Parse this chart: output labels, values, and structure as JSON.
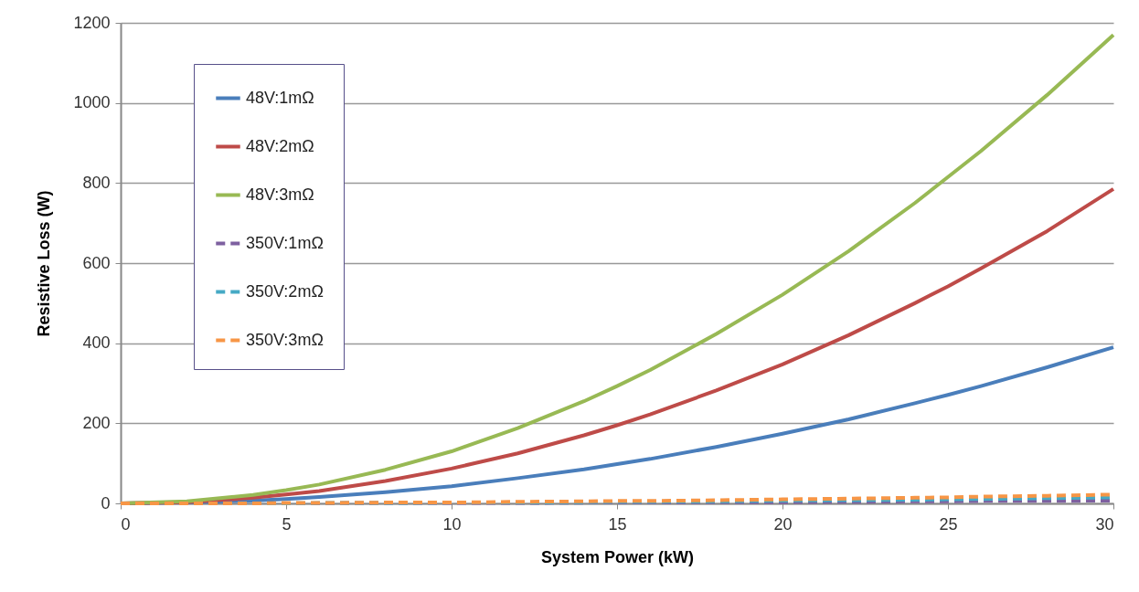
{
  "chart_data": {
    "type": "line",
    "xlabel": "System Power (kW)",
    "ylabel": "Resistive Loss (W)",
    "x": [
      0,
      2,
      4,
      5,
      6,
      8,
      10,
      12,
      14,
      15,
      16,
      18,
      20,
      22,
      24,
      25,
      26,
      28,
      30
    ],
    "series": [
      {
        "name": "48V:1mΩ",
        "color": "#4a7ebb",
        "line_style": "solid",
        "values": [
          0,
          2,
          7,
          11,
          16,
          28,
          43,
          63,
          85,
          98,
          111,
          141,
          174,
          210,
          250,
          271,
          293,
          340,
          390
        ]
      },
      {
        "name": "48V:2mΩ",
        "color": "#be4b48",
        "line_style": "solid",
        "values": [
          0,
          3,
          14,
          22,
          31,
          56,
          87,
          125,
          170,
          195,
          222,
          282,
          347,
          420,
          500,
          542,
          587,
          680,
          785
        ]
      },
      {
        "name": "48V:3mΩ",
        "color": "#98b954",
        "line_style": "solid",
        "values": [
          0,
          5,
          21,
          33,
          47,
          84,
          130,
          188,
          255,
          293,
          333,
          423,
          521,
          630,
          750,
          815,
          880,
          1020,
          1170
        ]
      },
      {
        "name": "350V:1mΩ",
        "color": "#7d60a0",
        "line_style": "dashed",
        "values": [
          0,
          0,
          0,
          0,
          0,
          1,
          1,
          1,
          2,
          2,
          2,
          3,
          3,
          4,
          5,
          5,
          6,
          6,
          7
        ]
      },
      {
        "name": "350V:2mΩ",
        "color": "#46aac5",
        "line_style": "dashed",
        "values": [
          0,
          0,
          0,
          0,
          1,
          1,
          2,
          2,
          3,
          4,
          4,
          5,
          7,
          8,
          9,
          10,
          11,
          13,
          15
        ]
      },
      {
        "name": "350V:3mΩ",
        "color": "#f79646",
        "line_style": "dashed",
        "values": [
          0,
          0,
          0,
          1,
          1,
          2,
          2,
          4,
          5,
          6,
          6,
          8,
          10,
          12,
          14,
          15,
          17,
          19,
          22
        ]
      }
    ],
    "xlim": [
      0,
      30
    ],
    "xticks": [
      0,
      5,
      10,
      15,
      20,
      25,
      30
    ],
    "ylim": [
      0,
      1200
    ],
    "yticks": [
      0,
      200,
      400,
      600,
      800,
      1000,
      1200
    ],
    "grid": "y",
    "legend": "top left"
  }
}
